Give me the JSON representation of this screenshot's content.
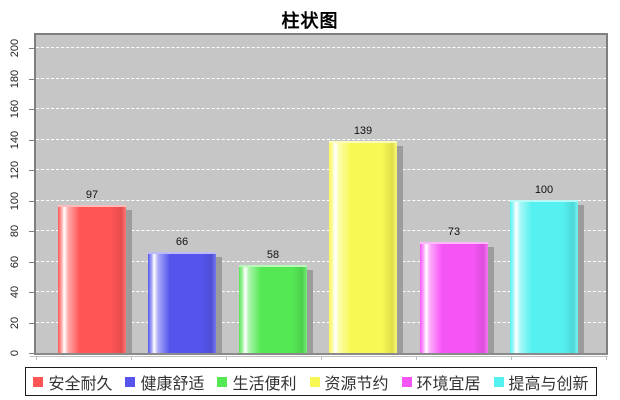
{
  "title": "柱状图",
  "chart_data": {
    "type": "bar",
    "title": "柱状图",
    "categories": [
      "安全耐久",
      "健康舒适",
      "生活便利",
      "资源节约",
      "环境宜居",
      "提高与创新"
    ],
    "values": [
      97,
      66,
      58,
      139,
      73,
      100
    ],
    "colors": [
      "#ff5555",
      "#5555ee",
      "#55e855",
      "#f8f855",
      "#f655f6",
      "#55f0f0"
    ],
    "value_labels": [
      "97",
      "66",
      "58",
      "139",
      "73",
      "100"
    ],
    "ylim": [
      0,
      200
    ],
    "ytick_interval": 20,
    "yticks": [
      0,
      20,
      40,
      60,
      80,
      100,
      120,
      140,
      160,
      180,
      200
    ],
    "grid": "horizontal white dashed lines on gray plot background",
    "plot_background": "#c6c6c6",
    "legend_position": "bottom",
    "bar_style": "cylinder gradient with left white highlight and gray drop shadow"
  }
}
